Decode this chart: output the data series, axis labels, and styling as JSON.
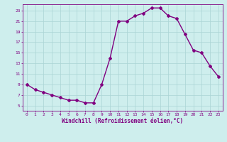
{
  "x": [
    0,
    1,
    2,
    3,
    4,
    5,
    6,
    7,
    8,
    9,
    10,
    11,
    12,
    13,
    14,
    15,
    16,
    17,
    18,
    19,
    20,
    21,
    22,
    23
  ],
  "y": [
    9,
    8,
    7.5,
    7,
    6.5,
    6,
    6,
    5.5,
    5.5,
    9,
    14,
    21,
    21,
    22,
    22.5,
    23.5,
    23.5,
    22,
    21.5,
    18.5,
    15.5,
    15,
    12.5,
    10.5
  ],
  "xlabel": "Windchill (Refroidissement éolien,°C)",
  "xlim": [
    -0.5,
    23.5
  ],
  "ylim": [
    4.0,
    24.2
  ],
  "yticks": [
    5,
    7,
    9,
    11,
    13,
    15,
    17,
    19,
    21,
    23
  ],
  "xticks": [
    0,
    1,
    2,
    3,
    4,
    5,
    6,
    7,
    8,
    9,
    10,
    11,
    12,
    13,
    14,
    15,
    16,
    17,
    18,
    19,
    20,
    21,
    22,
    23
  ],
  "line_color": "#800080",
  "marker": "D",
  "marker_size": 2.0,
  "bg_color": "#ceeeed",
  "grid_color": "#aad4d4",
  "line_width": 1.0
}
